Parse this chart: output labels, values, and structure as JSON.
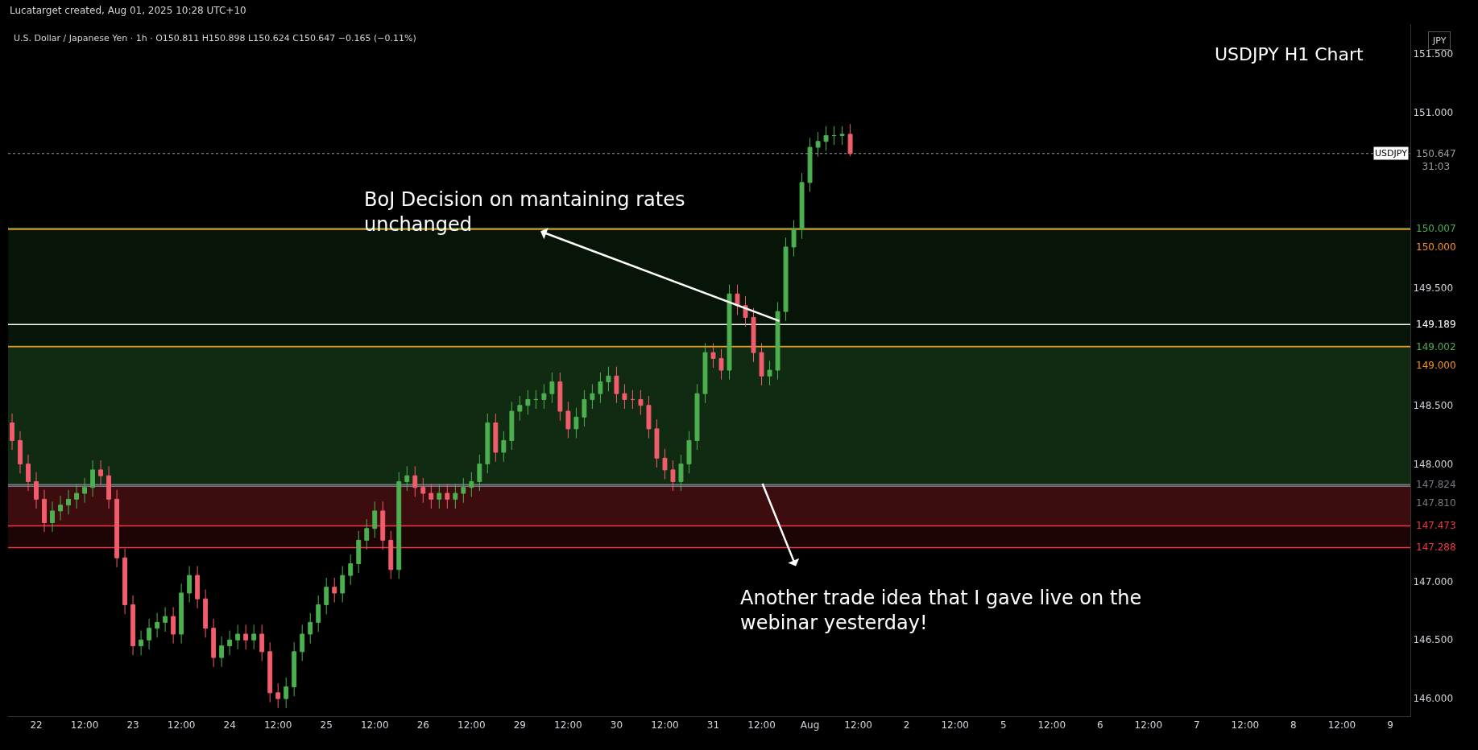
{
  "chart_data": {
    "type": "candlestick",
    "title": "USDJPY H1 Chart",
    "subtitle": "U.S. Dollar / Japanese Yen · 1h · O150.811 H150.898 L150.624 C150.647 −0.165 (−0.11%)",
    "categories": [
      null,
      null,
      null,
      "22",
      null,
      null,
      null,
      null,
      null,
      "12:00",
      null,
      null,
      null,
      null,
      null,
      "23",
      null,
      null,
      null,
      null,
      null,
      "12:00",
      null,
      null,
      null,
      null,
      null,
      "24",
      null,
      null,
      null,
      null,
      null,
      "12:00",
      null,
      null,
      null,
      null,
      null,
      "25",
      null,
      null,
      null,
      null,
      null,
      "12:00",
      null,
      null,
      null,
      null,
      null,
      "26",
      null,
      null,
      null,
      null,
      null,
      "12:00",
      null,
      null,
      null,
      null,
      null,
      "29",
      null,
      null,
      null,
      null,
      null,
      "12:00",
      null,
      null,
      null,
      null,
      null,
      "30",
      null,
      null,
      null,
      null,
      null,
      "12:00",
      null,
      null,
      null,
      null,
      null,
      "31",
      null,
      null,
      null,
      null,
      null,
      "12:00",
      null,
      null,
      null,
      null,
      null,
      "Aug",
      null,
      null,
      null,
      null,
      null,
      "12:00",
      null,
      null,
      null,
      null,
      null,
      "2",
      null,
      null,
      null,
      null,
      null,
      "12:00",
      null,
      null,
      null,
      null,
      null,
      "5",
      null,
      null,
      null,
      null,
      null,
      "12:00",
      null,
      null,
      null,
      null,
      null,
      "6",
      null,
      null,
      null,
      null,
      null,
      "12:00",
      null,
      null,
      null,
      null,
      null,
      "7",
      null,
      null,
      null,
      null,
      null,
      "12:00",
      null,
      null,
      null,
      null,
      null,
      "8",
      null,
      null,
      null,
      null,
      null,
      "12:00",
      null,
      null,
      null,
      null,
      null,
      "9",
      null,
      null
    ],
    "ohlc": [
      [
        148.35,
        148.43,
        148.12,
        148.2
      ],
      [
        148.2,
        148.28,
        147.92,
        148.0
      ],
      [
        148.0,
        148.08,
        147.77,
        147.85
      ],
      [
        147.85,
        147.93,
        147.62,
        147.7
      ],
      [
        147.7,
        147.78,
        147.42,
        147.5
      ],
      [
        147.5,
        147.68,
        147.42,
        147.6
      ],
      [
        147.6,
        147.73,
        147.52,
        147.65
      ],
      [
        147.65,
        147.78,
        147.57,
        147.7
      ],
      [
        147.7,
        147.83,
        147.62,
        147.75
      ],
      [
        147.75,
        147.88,
        147.67,
        147.8
      ],
      [
        147.8,
        148.03,
        147.72,
        147.95
      ],
      [
        147.95,
        148.03,
        147.82,
        147.9
      ],
      [
        147.9,
        147.98,
        147.62,
        147.7
      ],
      [
        147.7,
        147.78,
        147.12,
        147.2
      ],
      [
        147.2,
        147.28,
        146.72,
        146.8
      ],
      [
        146.8,
        146.88,
        146.37,
        146.45
      ],
      [
        146.45,
        146.58,
        146.37,
        146.5
      ],
      [
        146.5,
        146.68,
        146.42,
        146.6
      ],
      [
        146.6,
        146.73,
        146.52,
        146.65
      ],
      [
        146.65,
        146.78,
        146.57,
        146.7
      ],
      [
        146.7,
        146.78,
        146.47,
        146.55
      ],
      [
        146.55,
        146.98,
        146.47,
        146.9
      ],
      [
        146.9,
        147.13,
        146.82,
        147.05
      ],
      [
        147.05,
        147.13,
        146.77,
        146.85
      ],
      [
        146.85,
        146.93,
        146.52,
        146.6
      ],
      [
        146.6,
        146.68,
        146.27,
        146.35
      ],
      [
        146.35,
        146.53,
        146.27,
        146.45
      ],
      [
        146.45,
        146.58,
        146.37,
        146.5
      ],
      [
        146.5,
        146.63,
        146.42,
        146.55
      ],
      [
        146.55,
        146.63,
        146.42,
        146.5
      ],
      [
        146.5,
        146.63,
        146.42,
        146.55
      ],
      [
        146.55,
        146.63,
        146.32,
        146.4
      ],
      [
        146.4,
        146.48,
        145.97,
        146.05
      ],
      [
        146.05,
        146.13,
        145.92,
        146.0
      ],
      [
        146.0,
        146.18,
        145.92,
        146.1
      ],
      [
        146.1,
        146.48,
        146.02,
        146.4
      ],
      [
        146.4,
        146.63,
        146.32,
        146.55
      ],
      [
        146.55,
        146.73,
        146.47,
        146.65
      ],
      [
        146.65,
        146.88,
        146.57,
        146.8
      ],
      [
        146.8,
        147.03,
        146.72,
        146.95
      ],
      [
        146.95,
        147.03,
        146.82,
        146.9
      ],
      [
        146.9,
        147.13,
        146.82,
        147.05
      ],
      [
        147.05,
        147.23,
        146.97,
        147.15
      ],
      [
        147.15,
        147.43,
        147.07,
        147.35
      ],
      [
        147.35,
        147.53,
        147.27,
        147.45
      ],
      [
        147.45,
        147.68,
        147.37,
        147.6
      ],
      [
        147.6,
        147.68,
        147.27,
        147.35
      ],
      [
        147.35,
        147.43,
        147.02,
        147.1
      ],
      [
        147.1,
        147.93,
        147.02,
        147.85
      ],
      [
        147.85,
        147.98,
        147.77,
        147.9
      ],
      [
        147.9,
        147.98,
        147.72,
        147.8
      ],
      [
        147.8,
        147.88,
        147.67,
        147.75
      ],
      [
        147.75,
        147.83,
        147.62,
        147.7
      ],
      [
        147.7,
        147.83,
        147.62,
        147.75
      ],
      [
        147.75,
        147.83,
        147.62,
        147.7
      ],
      [
        147.7,
        147.83,
        147.62,
        147.75
      ],
      [
        147.75,
        147.88,
        147.67,
        147.8
      ],
      [
        147.8,
        147.93,
        147.72,
        147.85
      ],
      [
        147.85,
        148.08,
        147.77,
        148.0
      ],
      [
        148.0,
        148.43,
        147.92,
        148.35
      ],
      [
        148.35,
        148.43,
        148.02,
        148.1
      ],
      [
        148.1,
        148.28,
        148.02,
        148.2
      ],
      [
        148.2,
        148.53,
        148.12,
        148.45
      ],
      [
        148.45,
        148.58,
        148.37,
        148.5
      ],
      [
        148.5,
        148.63,
        148.42,
        148.55
      ],
      [
        148.55,
        148.63,
        148.47,
        148.55
      ],
      [
        148.55,
        148.68,
        148.47,
        148.6
      ],
      [
        148.6,
        148.78,
        148.52,
        148.7
      ],
      [
        148.7,
        148.78,
        148.37,
        148.45
      ],
      [
        148.45,
        148.53,
        148.22,
        148.3
      ],
      [
        148.3,
        148.48,
        148.22,
        148.4
      ],
      [
        148.4,
        148.63,
        148.32,
        148.55
      ],
      [
        148.55,
        148.68,
        148.47,
        148.6
      ],
      [
        148.6,
        148.78,
        148.52,
        148.7
      ],
      [
        148.7,
        148.83,
        148.62,
        148.75
      ],
      [
        148.75,
        148.83,
        148.52,
        148.6
      ],
      [
        148.6,
        148.68,
        148.47,
        148.55
      ],
      [
        148.55,
        148.63,
        148.47,
        148.55
      ],
      [
        148.55,
        148.63,
        148.42,
        148.5
      ],
      [
        148.5,
        148.58,
        148.22,
        148.3
      ],
      [
        148.3,
        148.38,
        147.97,
        148.05
      ],
      [
        148.05,
        148.13,
        147.87,
        147.95
      ],
      [
        147.95,
        148.03,
        147.77,
        147.85
      ],
      [
        147.85,
        148.08,
        147.77,
        148.0
      ],
      [
        148.0,
        148.28,
        147.92,
        148.2
      ],
      [
        148.2,
        148.68,
        148.12,
        148.6
      ],
      [
        148.6,
        149.03,
        148.52,
        148.95
      ],
      [
        148.95,
        149.03,
        148.82,
        148.9
      ],
      [
        148.9,
        148.98,
        148.72,
        148.8
      ],
      [
        148.8,
        149.53,
        148.72,
        149.45
      ],
      [
        149.45,
        149.53,
        149.27,
        149.35
      ],
      [
        149.35,
        149.43,
        149.17,
        149.25
      ],
      [
        149.25,
        149.33,
        148.87,
        148.95
      ],
      [
        148.95,
        149.03,
        148.67,
        148.75
      ],
      [
        148.75,
        148.88,
        148.67,
        148.8
      ],
      [
        148.8,
        149.38,
        148.72,
        149.3
      ],
      [
        149.3,
        149.93,
        149.22,
        149.85
      ],
      [
        149.85,
        150.08,
        149.77,
        150.0
      ],
      [
        150.0,
        150.48,
        149.92,
        150.4
      ],
      [
        150.4,
        150.78,
        150.32,
        150.7
      ],
      [
        150.7,
        150.83,
        150.62,
        150.75
      ],
      [
        150.75,
        150.88,
        150.67,
        150.8
      ],
      [
        150.8,
        150.88,
        150.72,
        150.8
      ],
      [
        150.8,
        150.88,
        150.72,
        150.811
      ],
      [
        150.811,
        150.898,
        150.624,
        150.647
      ],
      null,
      null,
      null,
      null,
      null,
      null,
      null,
      null,
      null,
      null,
      null,
      null,
      null,
      null,
      null,
      null,
      null,
      null,
      null,
      null,
      null,
      null,
      null,
      null,
      null,
      null,
      null,
      null,
      null,
      null,
      null,
      null,
      null,
      null,
      null,
      null,
      null,
      null,
      null,
      null,
      null,
      null,
      null,
      null,
      null,
      null,
      null,
      null,
      null,
      null,
      null,
      null,
      null,
      null,
      null,
      null,
      null,
      null,
      null,
      null,
      null,
      null,
      null,
      null,
      null,
      null,
      null,
      null,
      null
    ],
    "ylim": [
      145.85,
      151.75
    ],
    "yticks": [
      {
        "value": 146,
        "label": "146.000"
      },
      {
        "value": 146.5,
        "label": "146.500"
      },
      {
        "value": 147,
        "label": "147.000"
      },
      {
        "value": 148,
        "label": "148.000"
      },
      {
        "value": 148.5,
        "label": "148.500"
      },
      {
        "value": 149.5,
        "label": "149.500"
      },
      {
        "value": 151,
        "label": "151.000"
      },
      {
        "value": 151.5,
        "label": "151.500"
      }
    ],
    "grid": false,
    "ref_lines": [
      {
        "axis": "y",
        "value": 150.647,
        "label": "150.647\n31:03",
        "color": "#9e9e9e",
        "line_style": "dotted"
      },
      {
        "axis": "y",
        "value": 150.007,
        "label": "150.007",
        "color": "#4caf50",
        "line_style": "solid"
      },
      {
        "axis": "y",
        "value": 150.0,
        "label": "150.000",
        "color": "#f7931a",
        "line_style": "solid"
      },
      {
        "axis": "y",
        "value": 149.189,
        "label": "149.189",
        "color": "#ffffff",
        "line_style": "solid"
      },
      {
        "axis": "y",
        "value": 149.002,
        "label": "149.002",
        "color": "#4caf50",
        "line_style": "solid"
      },
      {
        "axis": "y",
        "value": 149.0,
        "label": "149.000",
        "color": "#f7931a",
        "line_style": "solid"
      },
      {
        "axis": "y",
        "value": 147.824,
        "label": "147.824",
        "color": "#787b86",
        "line_style": "solid"
      },
      {
        "axis": "y",
        "value": 147.81,
        "label": "147.810",
        "color": "#787b86",
        "line_style": "solid"
      },
      {
        "axis": "y",
        "value": 147.473,
        "label": "147.473",
        "color": "#f23645",
        "line_style": "solid"
      },
      {
        "axis": "y",
        "value": 147.288,
        "label": "147.288",
        "color": "#f23645",
        "line_style": "solid"
      }
    ],
    "bands": [
      {
        "axis": "y",
        "from": 147.824,
        "to": 149.002,
        "color": "#4caf50"
      },
      {
        "axis": "y",
        "from": 147.473,
        "to": 147.824,
        "color": "#f23645"
      },
      {
        "axis": "y",
        "from": 147.81,
        "to": 150.007,
        "color": "#2e7d32"
      },
      {
        "axis": "y",
        "from": 147.288,
        "to": 147.81,
        "color": "#b71c1c"
      }
    ],
    "annotations": [
      "Lucatarget created, Aug 01, 2025 10:28 UTC+10",
      "BoJ Decision on mantaining rates\nunchanged",
      "Another trade idea that I gave live on the\nwebinar yesterday!",
      "USDJPY",
      "JPY"
    ]
  }
}
